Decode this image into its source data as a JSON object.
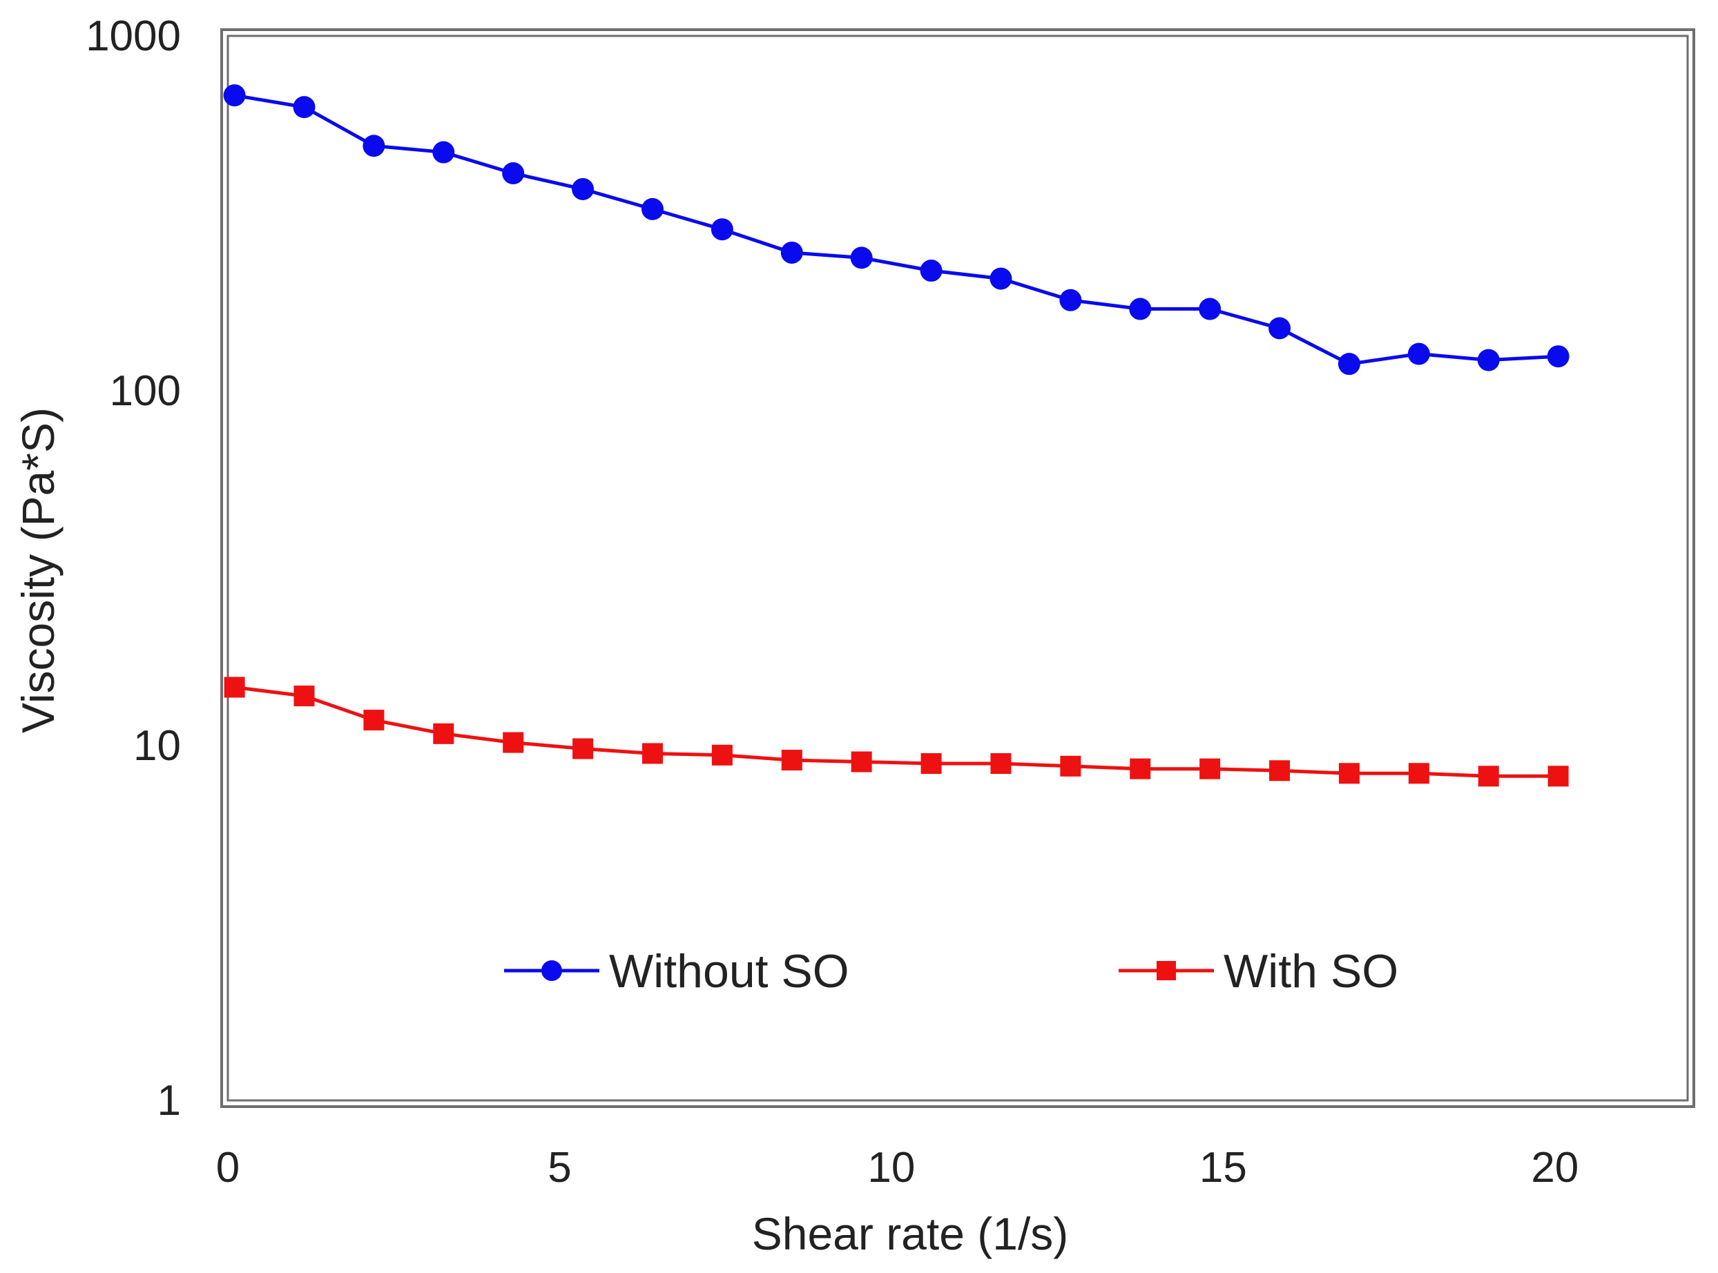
{
  "chart_data": {
    "type": "line",
    "title": "",
    "xlabel": "Shear rate (1/s)",
    "ylabel": "Viscosity (Pa*S)",
    "xlim": [
      0,
      22
    ],
    "ylim": [
      1,
      1000
    ],
    "yscale": "log",
    "x_ticks": [
      "0",
      "5",
      "10",
      "15",
      "20"
    ],
    "y_ticks": [
      "1",
      "10",
      "100",
      "1000"
    ],
    "grid": false,
    "legend_position": "bottom-center",
    "x": [
      0.1,
      1.15,
      2.2,
      3.25,
      4.3,
      5.35,
      6.4,
      7.45,
      8.5,
      9.55,
      10.6,
      11.65,
      12.7,
      13.75,
      14.8,
      15.85,
      16.9,
      17.95,
      19.0,
      20.05
    ],
    "series": [
      {
        "name": "Without SO",
        "color": "#0a0aee",
        "marker": "circle",
        "values": [
          680,
          630,
          490,
          470,
          410,
          370,
          325,
          285,
          245,
          237,
          218,
          207,
          180,
          170,
          170,
          150,
          119,
          127,
          122,
          125
        ]
      },
      {
        "name": "With SO",
        "color": "#ee1111",
        "marker": "square",
        "values": [
          14.6,
          13.8,
          11.8,
          10.8,
          10.2,
          9.8,
          9.5,
          9.4,
          9.1,
          9.0,
          8.9,
          8.9,
          8.75,
          8.6,
          8.6,
          8.5,
          8.35,
          8.35,
          8.2,
          8.2
        ]
      }
    ]
  }
}
